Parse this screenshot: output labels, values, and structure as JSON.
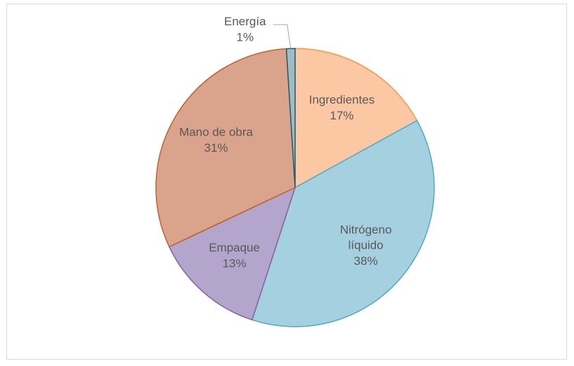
{
  "chart_data": {
    "type": "pie",
    "categories": [
      "Ingredientes",
      "Nitrógeno líquido",
      "Empaque",
      "Mano de obra",
      "Energía"
    ],
    "values": [
      17,
      38,
      13,
      31,
      1
    ],
    "value_labels": [
      "17%",
      "38%",
      "13%",
      "31%",
      "1%"
    ],
    "colors": [
      "#fcc8a4",
      "#a4d0e0",
      "#b3a5cb",
      "#d9a38c",
      "#9dbcc6"
    ],
    "edge_colors": [
      "#f79646",
      "#4bacc6",
      "#8064a2",
      "#c0632b",
      "#215d6e"
    ]
  }
}
